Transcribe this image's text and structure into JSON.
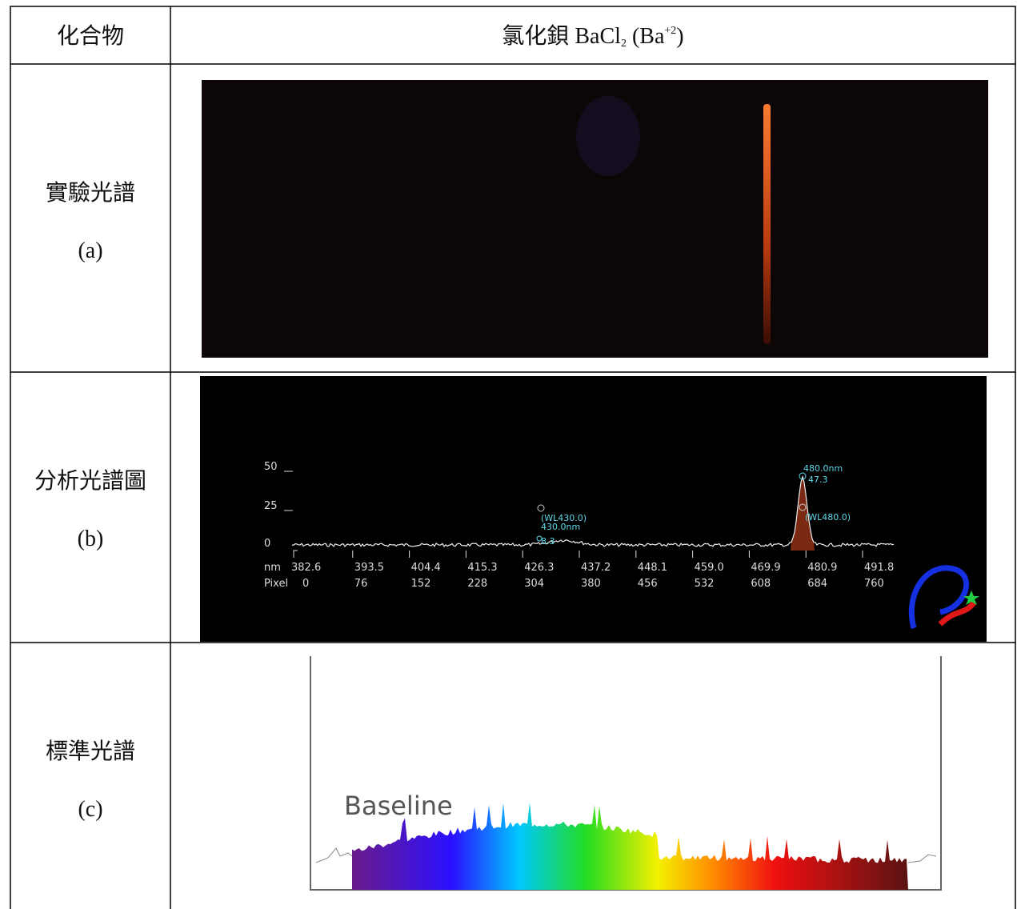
{
  "table": {
    "header": {
      "label": "化合物",
      "compound": [
        "氯化鋇 BaCl",
        "2",
        " (Ba",
        "+2",
        ")"
      ]
    },
    "rows": [
      {
        "label": "實驗光譜",
        "tag": "(a)"
      },
      {
        "label": "分析光譜圖",
        "tag": "(b)",
        "plot": {
          "yticks": [
            "50",
            "25",
            "0"
          ],
          "x_label": "nm",
          "x_values": [
            "382.6",
            "393.5",
            "404.4",
            "415.3",
            "426.3",
            "437.2",
            "448.1",
            "459.0",
            "469.9",
            "480.9",
            "491.8"
          ],
          "pixel_label": "Pixel",
          "pixel_values": [
            "0",
            "76",
            "152",
            "228",
            "304",
            "380",
            "456",
            "532",
            "608",
            "684",
            "760"
          ],
          "annotations": [
            "(WL430.0)",
            "430.0nm",
            "8.3",
            "480.0nm",
            "47.3",
            "(WL480.0)"
          ]
        }
      },
      {
        "label": "標準光譜",
        "tag": "(c)",
        "plot": {
          "label": "Baseline"
        }
      }
    ]
  }
}
